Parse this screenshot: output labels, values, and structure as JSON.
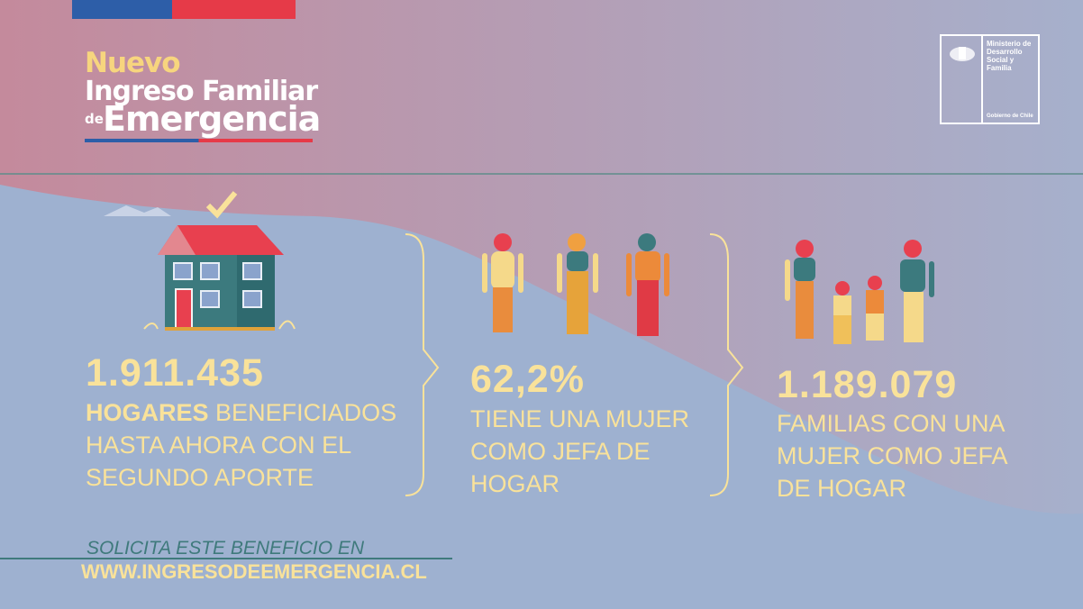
{
  "logo": {
    "nuevo": "Nuevo",
    "ingreso": "Ingreso Familiar",
    "de": "de",
    "emergencia": "Emergencia"
  },
  "ministry": {
    "name": "Ministerio de Desarrollo Social y Familia",
    "government": "Gobierno de Chile"
  },
  "stats": [
    {
      "value": "1.911.435",
      "highlight": "HOGARES",
      "text": "BENEFICIADOS HASTA AHORA CON EL SEGUNDO APORTE"
    },
    {
      "value": "62,2%",
      "text": "TIENE UNA MUJER COMO JEFA DE HOGAR"
    },
    {
      "value": "1.189.079",
      "text": "FAMILIAS CON UNA MUJER COMO JEFA DE HOGAR"
    }
  ],
  "footer": {
    "cta": "SOLICITA ESTE BENEFICIO EN",
    "url": "WWW.INGRESODEEMERGENCIA.CL"
  },
  "colors": {
    "pink": "#c48c9e",
    "blue": "#9eb1d0",
    "yellow": "#f9e29a",
    "teal": "#3f7a7c",
    "flag_blue": "#2d5ea8",
    "flag_red": "#e63a48"
  }
}
